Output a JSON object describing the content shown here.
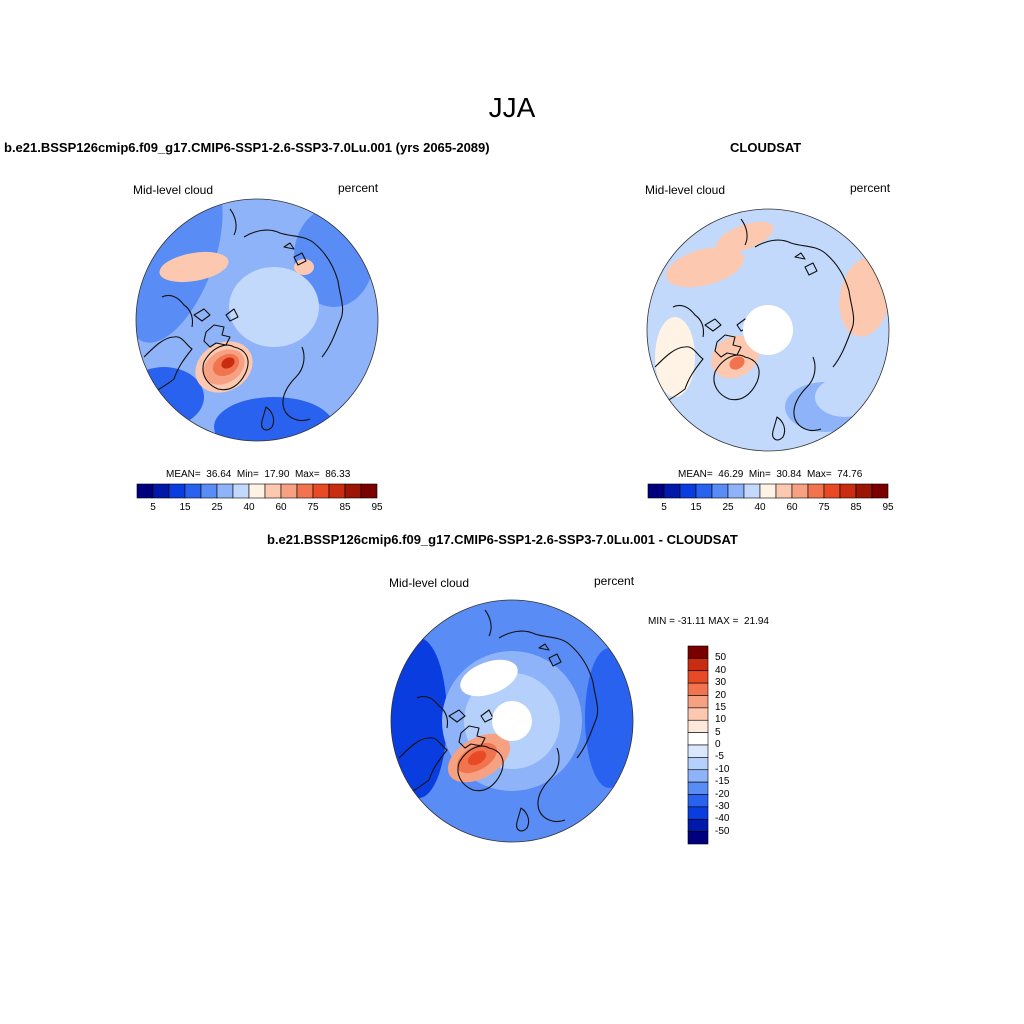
{
  "figure": {
    "title": "JJA"
  },
  "panels": [
    {
      "title": "b.e21.BSSP126cmip6.f09_g17.CMIP6-SSP1-2.6-SSP3-7.0Lu.001 (yrs 2065-2089)",
      "variable": "Mid-level cloud",
      "units": "percent",
      "stats": "MEAN=  36.64  Min=  17.90  Max=  86.33",
      "colorbar_ticks": [
        "5",
        "15",
        "25",
        "40",
        "60",
        "75",
        "85",
        "95"
      ]
    },
    {
      "title": "CLOUDSAT",
      "variable": "Mid-level cloud",
      "units": "percent",
      "stats": "MEAN=  46.29  Min=  30.84  Max=  74.76",
      "colorbar_ticks": [
        "5",
        "15",
        "25",
        "40",
        "60",
        "75",
        "85",
        "95"
      ]
    },
    {
      "title": "b.e21.BSSP126cmip6.f09_g17.CMIP6-SSP1-2.6-SSP3-7.0Lu.001 - CLOUDSAT",
      "variable": "Mid-level cloud",
      "units": "percent",
      "stats": "MIN = -31.11 MAX =  21.94",
      "colorbar_ticks": [
        "50",
        "40",
        "30",
        "20",
        "15",
        "10",
        "5",
        "0",
        "-5",
        "-10",
        "-15",
        "-20",
        "-30",
        "-40",
        "-50"
      ]
    }
  ],
  "colors": {
    "abs_scale": [
      "#00007f",
      "#0019a8",
      "#0a3de0",
      "#2a62f0",
      "#5a8cf5",
      "#8eb3f8",
      "#c2d9fb",
      "#fff3e6",
      "#fcc8b0",
      "#f7a183",
      "#f2744f",
      "#e84a26",
      "#c82d12",
      "#9c1505",
      "#7a0000"
    ],
    "diff_scale": [
      "#00007f",
      "#0019a8",
      "#0a3de0",
      "#2a62f0",
      "#5a8cf5",
      "#8eb3f8",
      "#b5d0fa",
      "#d9e8fd",
      "#ffffff",
      "#fde9dc",
      "#fcc8b0",
      "#f7a183",
      "#f2744f",
      "#e84a26",
      "#c82d12",
      "#7a0000"
    ],
    "ocean_fill": "#9dbdf7",
    "coast": "#111111"
  }
}
